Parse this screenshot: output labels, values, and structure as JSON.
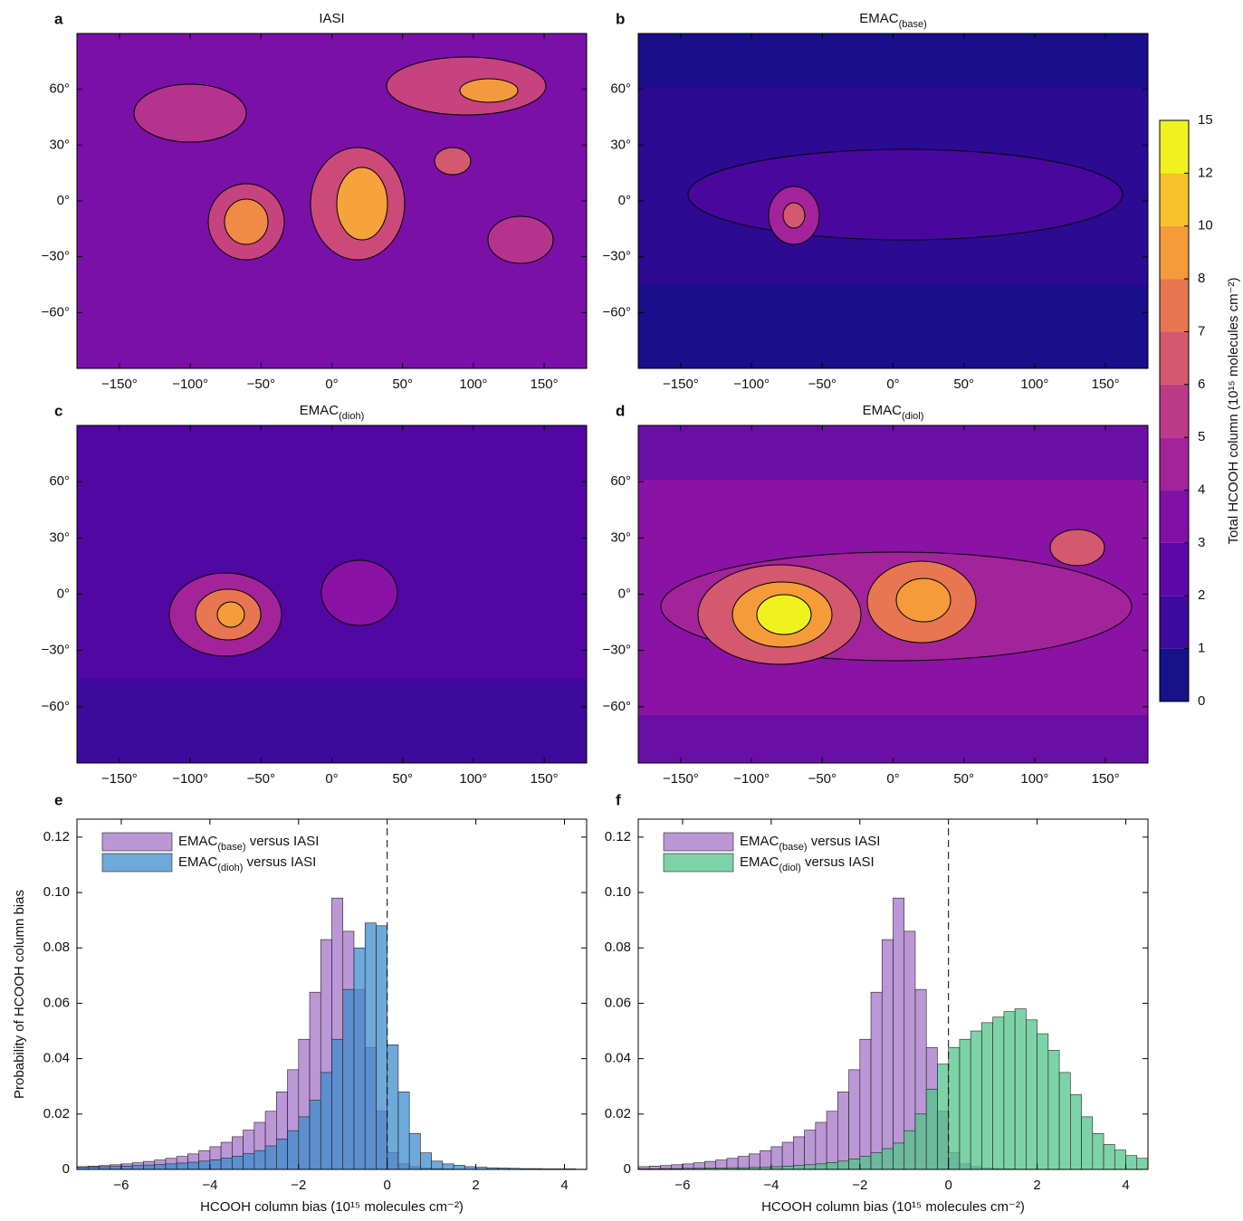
{
  "chart_data": [
    {
      "type": "map",
      "panel": "a",
      "title": "IASI",
      "xlim": [
        -180,
        180
      ],
      "ylim": [
        -90,
        90
      ],
      "xticks": [
        {
          "value": -150,
          "label": "−150°"
        },
        {
          "value": -100,
          "label": "−100°"
        },
        {
          "value": -50,
          "label": "−50°"
        },
        {
          "value": 0,
          "label": "0°"
        },
        {
          "value": 50,
          "label": "50°"
        },
        {
          "value": 100,
          "label": "100°"
        },
        {
          "value": 150,
          "label": "150°"
        }
      ],
      "yticks": [
        {
          "value": -60,
          "label": "−60°"
        },
        {
          "value": -30,
          "label": "−30°"
        },
        {
          "value": 0,
          "label": "0°"
        },
        {
          "value": 30,
          "label": "30°"
        },
        {
          "value": 60,
          "label": "60°"
        }
      ]
    },
    {
      "type": "map",
      "panel": "b",
      "title": "EMAC(base)",
      "xlim": [
        -180,
        180
      ],
      "ylim": [
        -90,
        90
      ],
      "xticks": [
        {
          "value": -150,
          "label": "−150°"
        },
        {
          "value": -100,
          "label": "−100°"
        },
        {
          "value": -50,
          "label": "−50°"
        },
        {
          "value": 0,
          "label": "0°"
        },
        {
          "value": 50,
          "label": "50°"
        },
        {
          "value": 100,
          "label": "100°"
        },
        {
          "value": 150,
          "label": "150°"
        }
      ],
      "yticks": [
        {
          "value": -60,
          "label": "−60°"
        },
        {
          "value": -30,
          "label": "−30°"
        },
        {
          "value": 0,
          "label": "0°"
        },
        {
          "value": 30,
          "label": "30°"
        },
        {
          "value": 60,
          "label": "60°"
        }
      ]
    },
    {
      "type": "map",
      "panel": "c",
      "title": "EMAC(dioh)",
      "xlim": [
        -180,
        180
      ],
      "ylim": [
        -90,
        90
      ],
      "xticks": [
        {
          "value": -150,
          "label": "−150°"
        },
        {
          "value": -100,
          "label": "−100°"
        },
        {
          "value": -50,
          "label": "−50°"
        },
        {
          "value": 0,
          "label": "0°"
        },
        {
          "value": 50,
          "label": "50°"
        },
        {
          "value": 100,
          "label": "100°"
        },
        {
          "value": 150,
          "label": "150°"
        }
      ],
      "yticks": [
        {
          "value": -60,
          "label": "−60°"
        },
        {
          "value": -30,
          "label": "−30°"
        },
        {
          "value": 0,
          "label": "0°"
        },
        {
          "value": 30,
          "label": "30°"
        },
        {
          "value": 60,
          "label": "60°"
        }
      ]
    },
    {
      "type": "map",
      "panel": "d",
      "title": "EMAC(diol)",
      "xlim": [
        -180,
        180
      ],
      "ylim": [
        -90,
        90
      ],
      "xticks": [
        {
          "value": -150,
          "label": "−150°"
        },
        {
          "value": -100,
          "label": "−100°"
        },
        {
          "value": -50,
          "label": "−50°"
        },
        {
          "value": 0,
          "label": "0°"
        },
        {
          "value": 50,
          "label": "50°"
        },
        {
          "value": 100,
          "label": "100°"
        },
        {
          "value": 150,
          "label": "150°"
        }
      ],
      "yticks": [
        {
          "value": -60,
          "label": "−60°"
        },
        {
          "value": -30,
          "label": "−30°"
        },
        {
          "value": 0,
          "label": "0°"
        },
        {
          "value": 30,
          "label": "30°"
        },
        {
          "value": 60,
          "label": "60°"
        }
      ]
    },
    {
      "type": "colorbar",
      "label": "Total HCOOH column (10¹⁵ molecules cm⁻²)",
      "levels": [
        0,
        1,
        2,
        3,
        4,
        5,
        6,
        7,
        8,
        10,
        12,
        15
      ],
      "colors": [
        "#15128a",
        "#3f0a9e",
        "#5d07a6",
        "#8310a6",
        "#a3249a",
        "#bc3a86",
        "#d4586e",
        "#e87651",
        "#f59b3a",
        "#f8c129",
        "#eff21f"
      ]
    },
    {
      "type": "histogram",
      "panel": "e",
      "xlabel": "HCOOH column bias (10¹⁵ molecules cm⁻²)",
      "ylabel": "Probability of HCOOH column bias",
      "xlim": [
        -7,
        4.5
      ],
      "ylim": [
        0,
        0.1265
      ],
      "vline": 0,
      "legend": "upper left",
      "xticks": [
        {
          "value": -6,
          "label": "−6"
        },
        {
          "value": -4,
          "label": "−4"
        },
        {
          "value": -2,
          "label": "−2"
        },
        0,
        2,
        4
      ],
      "yticks": [
        0,
        0.02,
        0.04,
        0.06,
        0.08,
        {
          "value": 0.1,
          "label": "0.10"
        },
        0.12
      ],
      "bins": [
        -7,
        -6.75,
        -6.5,
        -6.25,
        -6,
        -5.75,
        -5.5,
        -5.25,
        -5,
        -4.75,
        -4.5,
        -4.25,
        -4,
        -3.75,
        -3.5,
        -3.25,
        -3,
        -2.75,
        -2.5,
        -2.25,
        -2,
        -1.75,
        -1.5,
        -1.25,
        -1,
        -0.75,
        -0.5,
        -0.25,
        0,
        0.25,
        0.5,
        0.75,
        1,
        1.25,
        1.5,
        1.75,
        2,
        2.25,
        2.5,
        2.75,
        3,
        3.25,
        3.5,
        3.75,
        4,
        4.25,
        4.5
      ],
      "series": [
        {
          "name": "EMAC(base) versus IASI",
          "color": "#a474c8",
          "values": [
            0.001,
            0.0012,
            0.0014,
            0.0017,
            0.002,
            0.0024,
            0.0029,
            0.0034,
            0.004,
            0.0047,
            0.0056,
            0.0068,
            0.0082,
            0.0098,
            0.0118,
            0.0142,
            0.017,
            0.021,
            0.028,
            0.036,
            0.047,
            0.064,
            0.083,
            0.098,
            0.086,
            0.065,
            0.044,
            0.021,
            0.006,
            0.002,
            0.001,
            0.0005,
            0.0003,
            0.0002,
            0.0001,
            0.0001,
            0,
            0,
            0,
            0,
            0,
            0,
            0,
            0,
            0,
            0
          ]
        },
        {
          "name": "EMAC(dioh) versus IASI",
          "color": "#3d8ccc",
          "values": [
            0.0008,
            0.0009,
            0.001,
            0.0011,
            0.0012,
            0.0014,
            0.0016,
            0.0018,
            0.002,
            0.0023,
            0.0026,
            0.003,
            0.0035,
            0.0041,
            0.0048,
            0.0057,
            0.0068,
            0.0085,
            0.011,
            0.014,
            0.019,
            0.025,
            0.035,
            0.047,
            0.065,
            0.08,
            0.089,
            0.088,
            0.045,
            0.028,
            0.013,
            0.006,
            0.003,
            0.002,
            0.0015,
            0.001,
            0.0008,
            0.0006,
            0.0005,
            0.0004,
            0.0003,
            0.0003,
            0.0002,
            0.0002,
            0.0002,
            0.0001
          ]
        }
      ]
    },
    {
      "type": "histogram",
      "panel": "f",
      "xlabel": "HCOOH column bias (10¹⁵ molecules cm⁻²)",
      "xlim": [
        -7,
        4.5
      ],
      "ylim": [
        0,
        0.1265
      ],
      "vline": 0,
      "legend": "upper left",
      "xticks": [
        {
          "value": -6,
          "label": "−6"
        },
        {
          "value": -4,
          "label": "−4"
        },
        {
          "value": -2,
          "label": "−2"
        },
        0,
        2,
        4
      ],
      "yticks": [
        0,
        0.02,
        0.04,
        0.06,
        0.08,
        {
          "value": 0.1,
          "label": "0.10"
        },
        0.12
      ],
      "bins": [
        -7,
        -6.75,
        -6.5,
        -6.25,
        -6,
        -5.75,
        -5.5,
        -5.25,
        -5,
        -4.75,
        -4.5,
        -4.25,
        -4,
        -3.75,
        -3.5,
        -3.25,
        -3,
        -2.75,
        -2.5,
        -2.25,
        -2,
        -1.75,
        -1.5,
        -1.25,
        -1,
        -0.75,
        -0.5,
        -0.25,
        0,
        0.25,
        0.5,
        0.75,
        1,
        1.25,
        1.5,
        1.75,
        2,
        2.25,
        2.5,
        2.75,
        3,
        3.25,
        3.5,
        3.75,
        4,
        4.25,
        4.5
      ],
      "series": [
        {
          "name": "EMAC(base) versus IASI",
          "color": "#a474c8",
          "values": [
            0.001,
            0.0012,
            0.0014,
            0.0017,
            0.002,
            0.0024,
            0.0029,
            0.0034,
            0.004,
            0.0047,
            0.0056,
            0.0068,
            0.0082,
            0.0098,
            0.0118,
            0.0142,
            0.017,
            0.021,
            0.028,
            0.036,
            0.047,
            0.064,
            0.083,
            0.098,
            0.086,
            0.065,
            0.044,
            0.021,
            0.006,
            0.002,
            0.001,
            0.0005,
            0.0003,
            0.0002,
            0.0001,
            0.0001,
            0,
            0,
            0,
            0,
            0,
            0,
            0,
            0,
            0,
            0
          ]
        },
        {
          "name": "EMAC(diol) versus IASI",
          "color": "#52c48a",
          "values": [
            0.0002,
            0.0002,
            0.0003,
            0.0003,
            0.0004,
            0.0004,
            0.0005,
            0.0005,
            0.0006,
            0.0006,
            0.0007,
            0.0008,
            0.001,
            0.0012,
            0.0014,
            0.0017,
            0.002,
            0.0025,
            0.003,
            0.0038,
            0.0048,
            0.006,
            0.0075,
            0.0095,
            0.014,
            0.02,
            0.029,
            0.038,
            0.044,
            0.047,
            0.05,
            0.053,
            0.055,
            0.057,
            0.058,
            0.054,
            0.049,
            0.043,
            0.035,
            0.027,
            0.019,
            0.013,
            0.009,
            0.007,
            0.005,
            0.004
          ]
        }
      ]
    }
  ]
}
